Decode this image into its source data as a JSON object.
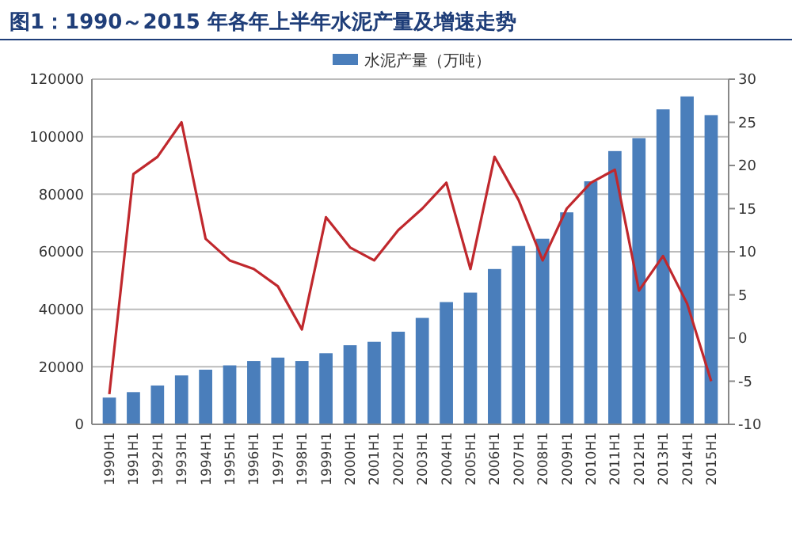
{
  "chart_data": {
    "type": "bar",
    "title": "图1：1990～2015 年各年上半年水泥产量及增速走势",
    "categories": [
      "1990H1",
      "1991H1",
      "1992H1",
      "1993H1",
      "1994H1",
      "1995H1",
      "1996H1",
      "1997H1",
      "1998H1",
      "1999H1",
      "2000H1",
      "2001H1",
      "2002H1",
      "2003H1",
      "2004H1",
      "2005H1",
      "2006H1",
      "2007H1",
      "2008H1",
      "2009H1",
      "2010H1",
      "2011H1",
      "2012H1",
      "2013H1",
      "2014H1",
      "2015H1"
    ],
    "series": [
      {
        "name": "水泥产量（万吨）",
        "color": "#4a7ebb",
        "values": [
          9300,
          11200,
          13500,
          17000,
          19000,
          20500,
          22000,
          23200,
          22000,
          24700,
          27500,
          28700,
          32200,
          37000,
          42500,
          45800,
          54000,
          62000,
          64500,
          73700,
          84500,
          95000,
          99500,
          109500,
          114000,
          107500
        ]
      },
      {
        "type": "line",
        "axis": "y2",
        "color": "#c0282d",
        "values": [
          -6.5,
          19,
          21,
          25,
          11.5,
          9,
          8,
          6,
          1,
          14,
          10.5,
          9,
          12.5,
          15,
          18,
          8,
          21,
          16,
          9,
          15,
          18,
          19.5,
          5.5,
          9.5,
          4,
          -5
        ]
      }
    ],
    "ylim": [
      0,
      120000
    ],
    "yticks": [
      0,
      20000,
      40000,
      60000,
      80000,
      100000,
      120000
    ],
    "y2lim": [
      -10,
      30
    ],
    "y2ticks": [
      -10,
      -5,
      0,
      5,
      10,
      15,
      20,
      25,
      30
    ],
    "grid": "y",
    "legend": "top"
  }
}
